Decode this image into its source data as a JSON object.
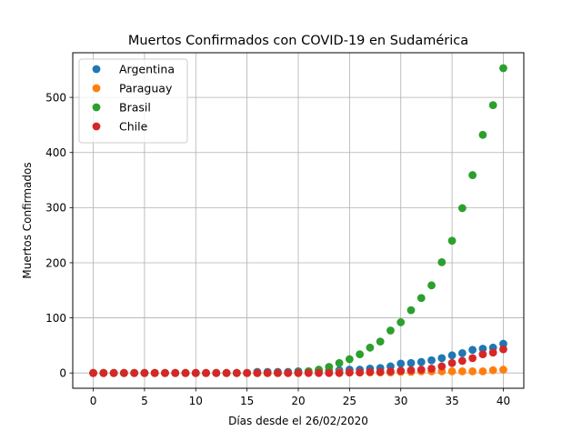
{
  "chart_data": {
    "type": "scatter",
    "title": "Muertos Confirmados con COVID-19 en Sudamérica",
    "xlabel": "Días desde el 26/02/2020",
    "ylabel": "Muertos Confirmados",
    "xlim": [
      -2,
      42
    ],
    "ylim": [
      -27.7,
      581
    ],
    "xticks": [
      0,
      5,
      10,
      15,
      20,
      25,
      30,
      35,
      40
    ],
    "yticks": [
      0,
      100,
      200,
      300,
      400,
      500
    ],
    "grid": true,
    "legend_position": "top-left",
    "x": [
      0,
      1,
      2,
      3,
      4,
      5,
      6,
      7,
      8,
      9,
      10,
      11,
      12,
      13,
      14,
      15,
      16,
      17,
      18,
      19,
      20,
      21,
      22,
      23,
      24,
      25,
      26,
      27,
      28,
      29,
      30,
      31,
      32,
      33,
      34,
      35,
      36,
      37,
      38,
      39,
      40
    ],
    "series": [
      {
        "name": "Argentina",
        "color": "#1f77b4",
        "values": [
          0,
          0,
          0,
          0,
          0,
          0,
          0,
          0,
          0,
          0,
          0,
          0,
          0,
          0,
          0,
          0,
          2,
          2,
          2,
          2,
          3,
          3,
          4,
          4,
          5,
          6,
          6,
          8,
          9,
          12,
          17,
          18,
          20,
          23,
          27,
          32,
          36,
          42,
          44,
          46,
          53
        ]
      },
      {
        "name": "Paraguay",
        "color": "#ff7f0e",
        "values": [
          0,
          0,
          0,
          0,
          0,
          0,
          0,
          0,
          0,
          0,
          0,
          0,
          0,
          0,
          0,
          0,
          0,
          0,
          0,
          0,
          0,
          1,
          1,
          1,
          1,
          1,
          1,
          1,
          1,
          1,
          2,
          2,
          3,
          3,
          3,
          3,
          3,
          3,
          3,
          5,
          6
        ]
      },
      {
        "name": "Brasil",
        "color": "#2ca02c",
        "values": [
          0,
          0,
          0,
          0,
          0,
          0,
          0,
          0,
          0,
          0,
          0,
          0,
          0,
          0,
          0,
          0,
          0,
          0,
          0,
          0,
          1,
          3,
          6,
          11,
          18,
          25,
          34,
          46,
          57,
          77,
          92,
          114,
          136,
          159,
          201,
          240,
          299,
          359,
          432,
          486,
          553
        ]
      },
      {
        "name": "Chile",
        "color": "#d62728",
        "values": [
          0,
          0,
          0,
          0,
          0,
          0,
          0,
          0,
          0,
          0,
          0,
          0,
          0,
          0,
          0,
          0,
          0,
          0,
          0,
          0,
          0,
          0,
          0,
          0,
          0,
          1,
          1,
          2,
          2,
          3,
          4,
          5,
          6,
          8,
          12,
          18,
          22,
          27,
          34,
          37,
          43
        ]
      }
    ]
  }
}
